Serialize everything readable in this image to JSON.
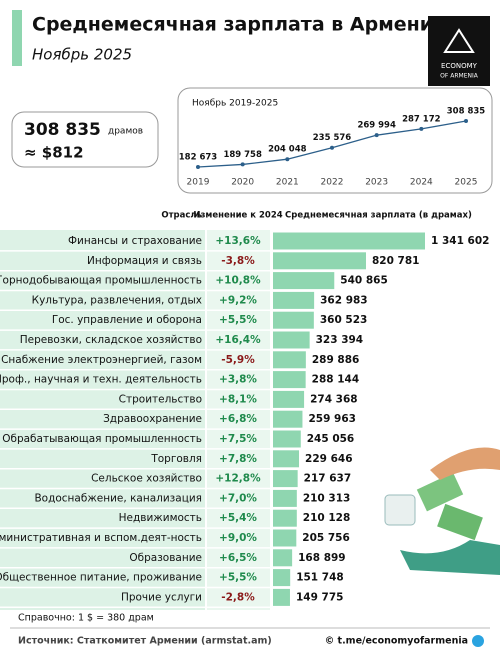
{
  "header": {
    "title": "Среднемесячная зарплата в Армении",
    "subtitle": "Ноябрь 2025",
    "logo": [
      "ECONOMY",
      "OF ARMENIA"
    ]
  },
  "summary": {
    "amount": "308 835",
    "unit": "драмов",
    "usd": "≈ $812"
  },
  "chart_data": [
    {
      "type": "line",
      "title": "Ноябрь 2019-2025",
      "x": [
        2019,
        2020,
        2021,
        2022,
        2023,
        2024,
        2025
      ],
      "xticks": [
        2019,
        2020,
        2021,
        2022,
        2023,
        2024,
        2025
      ],
      "values": [
        182673,
        189758,
        204048,
        235576,
        269994,
        287172,
        308835
      ],
      "value_labels": [
        "182 673",
        "189 758",
        "204 048",
        "235 576",
        "269 994",
        "287 172",
        "308 835"
      ],
      "color": "#2c5f8a"
    },
    {
      "type": "hbar",
      "headers": [
        "Отрасль",
        "Изменение к 2024",
        "Среднемесячная зарплата (в драмах)"
      ],
      "categories": [
        "Финансы и страхование",
        "Информация и связь",
        "Горнодобывающая промышленность",
        "Культура, развлечения, отдых",
        "Гос. управление и оборона",
        "Перевозки, складское хозяйство",
        "Снабжение электроэнергией, газом",
        "Проф., научная и техн. деятельность",
        "Строительство",
        "Здравоохранение",
        "Обрабатывающая промышленность",
        "Торговля",
        "Сельское хозяйство",
        "Водоснабжение, канализация",
        "Недвижимость",
        "Административная и вспом.деят-ность",
        "Образование",
        "Общественное питание, проживание",
        "Прочие услуги"
      ],
      "changes": [
        "+13,6%",
        "-3,8%",
        "+10,8%",
        "+9,2%",
        "+5,5%",
        "+16,4%",
        "-5,9%",
        "+3,8%",
        "+8,1%",
        "+6,8%",
        "+7,5%",
        "+7,8%",
        "+12,8%",
        "+7,0%",
        "+5,4%",
        "+9,0%",
        "+6,5%",
        "+5,5%",
        "-2,8%"
      ],
      "values": [
        1341602,
        820781,
        540865,
        362983,
        360523,
        323394,
        289886,
        288144,
        274368,
        259963,
        245056,
        229646,
        217637,
        210313,
        210128,
        205756,
        168899,
        151748,
        149775
      ],
      "value_labels": [
        "1 341 602",
        "820 781",
        "540 865",
        "362 983",
        "360 523",
        "323 394",
        "289 886",
        "288 144",
        "274 368",
        "259 963",
        "245 056",
        "229 646",
        "217 637",
        "210 313",
        "210 128",
        "205 756",
        "168 899",
        "151 748",
        "149 775"
      ],
      "color": "#8fd6b0",
      "positive_color": "#1f8a4c",
      "negative_color": "#8b1a1a"
    }
  ],
  "footer": {
    "note": "Справочно: 1 $ = 380 драм",
    "source": "Источник: Статкомитет Армении (armstat.am)",
    "credit": "© t.me/economyofarmenia"
  }
}
